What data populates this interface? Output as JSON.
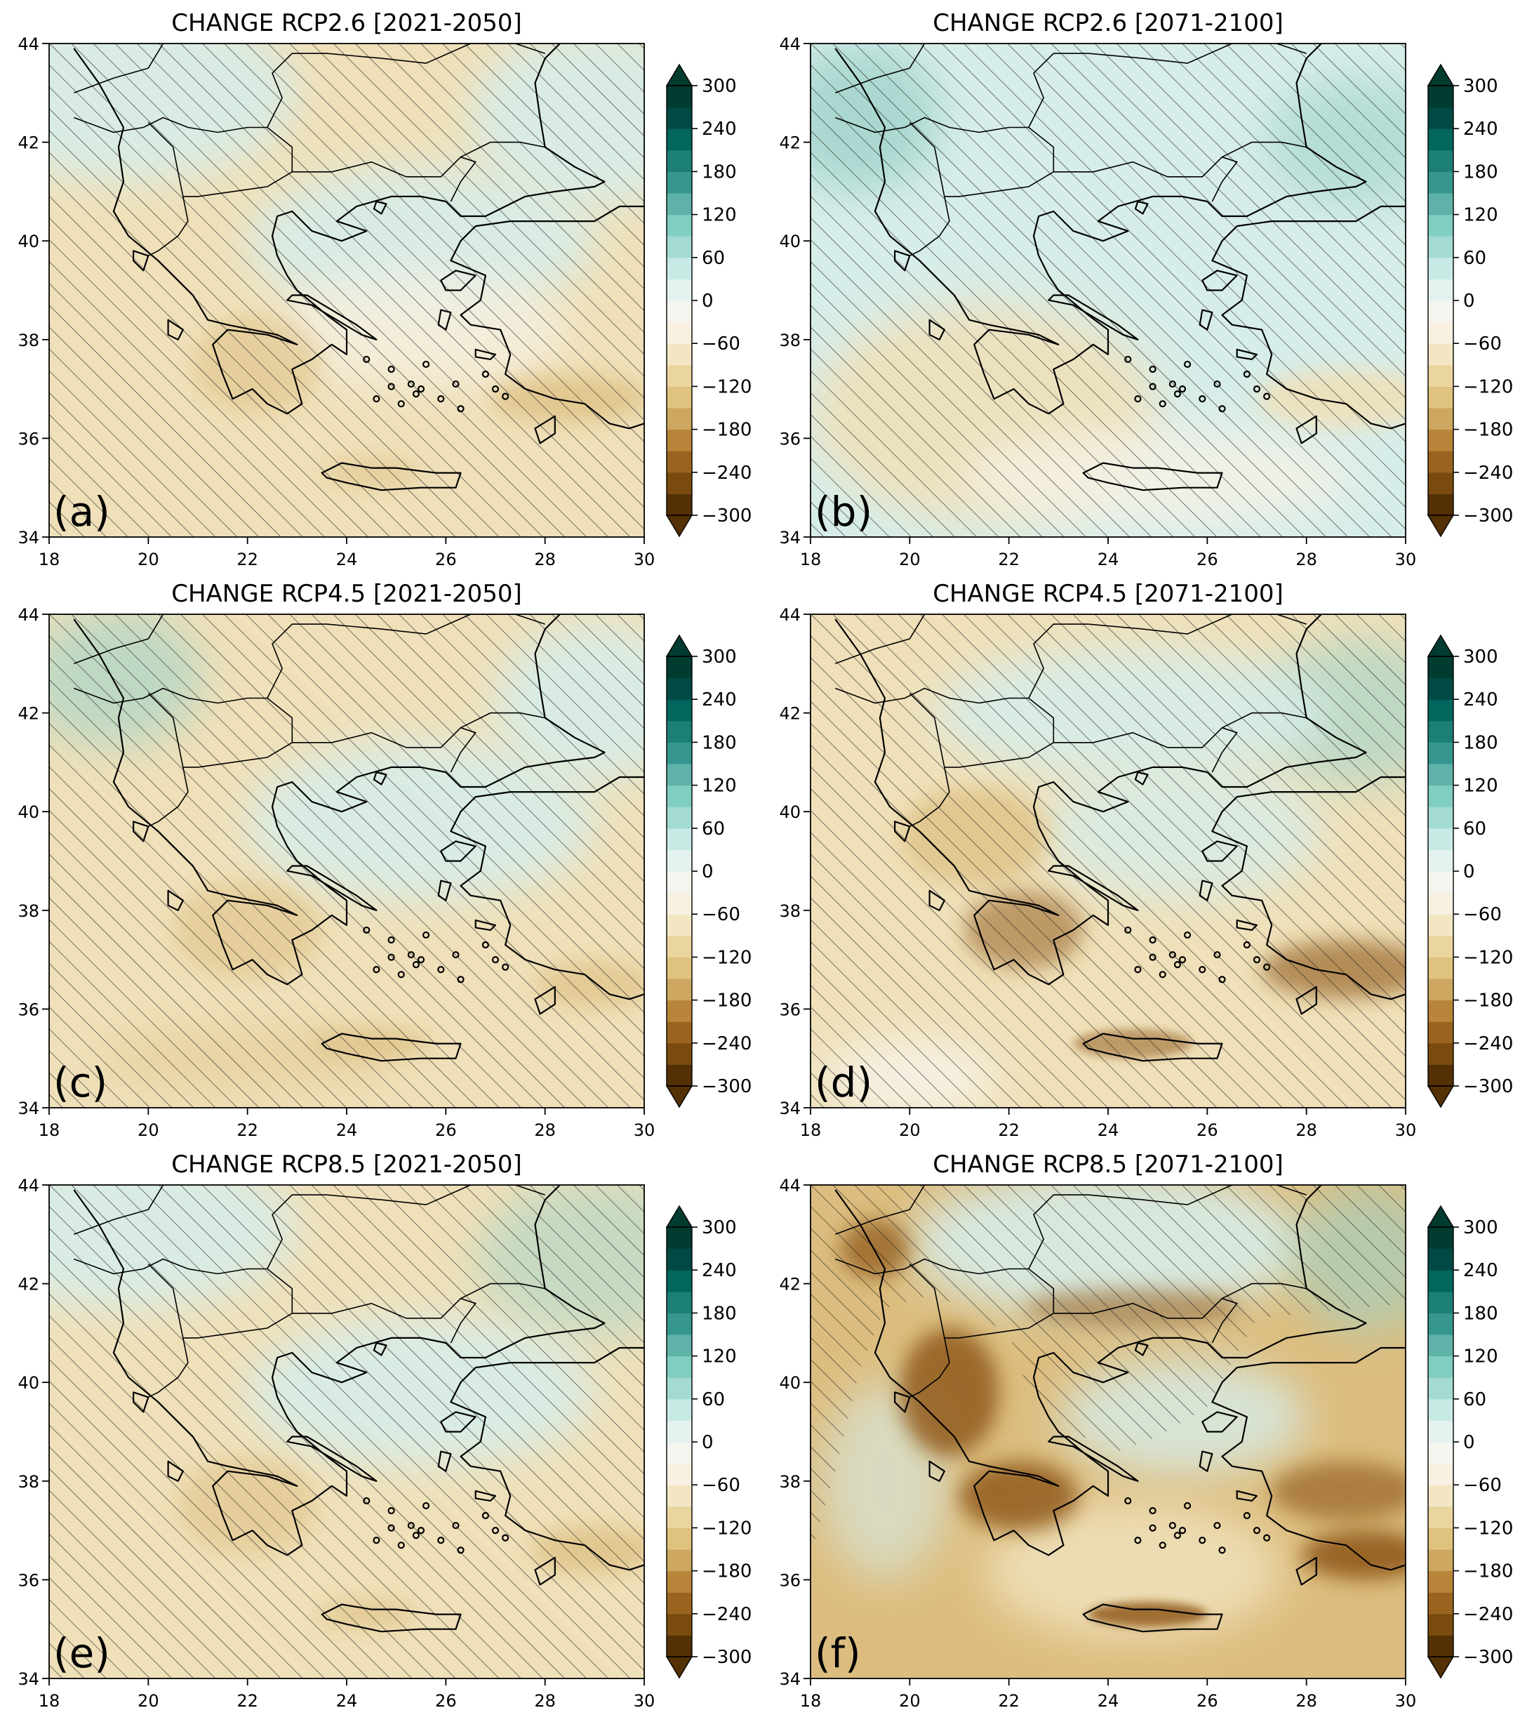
{
  "figure": {
    "panels": [
      {
        "id": "a",
        "title": "CHANGE RCP2.6 [2021-2050]",
        "letter": "(a)",
        "scenario": "RCP2.6",
        "period": "2021-2050"
      },
      {
        "id": "b",
        "title": "CHANGE RCP2.6 [2071-2100]",
        "letter": "(b)",
        "scenario": "RCP2.6",
        "period": "2071-2100"
      },
      {
        "id": "c",
        "title": "CHANGE RCP4.5 [2021-2050]",
        "letter": "(c)",
        "scenario": "RCP4.5",
        "period": "2021-2050"
      },
      {
        "id": "d",
        "title": "CHANGE RCP4.5 [2071-2100]",
        "letter": "(d)",
        "scenario": "RCP4.5",
        "period": "2071-2100"
      },
      {
        "id": "e",
        "title": "CHANGE RCP8.5 [2021-2050]",
        "letter": "(e)",
        "scenario": "RCP8.5",
        "period": "2021-2050"
      },
      {
        "id": "f",
        "title": "CHANGE RCP8.5 [2071-2100]",
        "letter": "(f)",
        "scenario": "RCP8.5",
        "period": "2071-2100"
      }
    ],
    "axes": {
      "x_ticks": [
        "18",
        "20",
        "22",
        "24",
        "26",
        "28",
        "30"
      ],
      "y_ticks": [
        "34",
        "36",
        "38",
        "40",
        "42",
        "44"
      ],
      "xlim": [
        18,
        30
      ],
      "ylim": [
        34,
        44
      ]
    },
    "colorbar": {
      "ticks": [
        "300",
        "240",
        "180",
        "120",
        "60",
        "0",
        "−60",
        "−120",
        "−180",
        "−240",
        "−300"
      ],
      "range": [
        -300,
        300
      ],
      "extend": "both",
      "colors_low_to_high": [
        "#543005",
        "#7a4a0f",
        "#9a6420",
        "#b9853a",
        "#cda660",
        "#dfc27d",
        "#ead59e",
        "#f2e6c3",
        "#f8f1e1",
        "#f5f5f0",
        "#e3f2ef",
        "#c7eae5",
        "#a3dbd2",
        "#80cdc1",
        "#5fb2a8",
        "#35978f",
        "#1c7f76",
        "#01665e",
        "#014a44",
        "#003c30"
      ]
    },
    "map_colors": {
      "drying_light": "#efe0b9",
      "drying_medium": "#dcbd7f",
      "drying_strong": "#8c5514",
      "wetting_light": "#d7ede9",
      "wetting_medium": "#9fd3ca",
      "neutral": "#f6f2e6",
      "coastline": "#000000",
      "hatch": "#222222"
    }
  }
}
